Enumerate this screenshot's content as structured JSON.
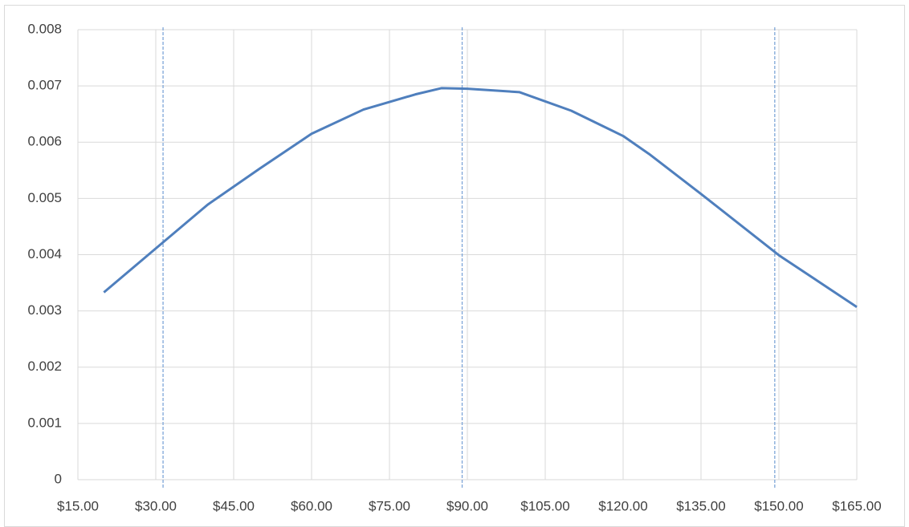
{
  "chart_data": {
    "type": "line",
    "x": [
      20,
      30,
      40,
      50,
      60,
      70,
      80,
      85,
      90,
      100,
      110,
      120,
      125,
      135,
      150,
      165
    ],
    "series": [
      {
        "color": "#4f7fbd",
        "values": [
          0.00333,
          0.00411,
          0.00489,
          0.00553,
          0.00615,
          0.00658,
          0.00685,
          0.00696,
          0.00695,
          0.00689,
          0.00656,
          0.00611,
          0.00579,
          0.00508,
          0.00399,
          0.00307
        ]
      }
    ],
    "reference_lines": {
      "color": "#7ea6d8",
      "dashed": true,
      "values": [
        31.4,
        89,
        149.2
      ]
    },
    "xlim": [
      15,
      165
    ],
    "xticks": [
      {
        "value": 15,
        "label": "$15.00"
      },
      {
        "value": 30,
        "label": "$30.00"
      },
      {
        "value": 45,
        "label": "$45.00"
      },
      {
        "value": 60,
        "label": "$60.00"
      },
      {
        "value": 75,
        "label": "$75.00"
      },
      {
        "value": 90,
        "label": "$90.00"
      },
      {
        "value": 105,
        "label": "$105.00"
      },
      {
        "value": 120,
        "label": "$120.00"
      },
      {
        "value": 135,
        "label": "$135.00"
      },
      {
        "value": 150,
        "label": "$150.00"
      },
      {
        "value": 165,
        "label": "$165.00"
      }
    ],
    "ylim": [
      0,
      0.008
    ],
    "yticks": [
      0,
      0.001,
      0.002,
      0.003,
      0.004,
      0.005,
      0.006,
      0.007,
      0.008
    ],
    "grid": true
  }
}
